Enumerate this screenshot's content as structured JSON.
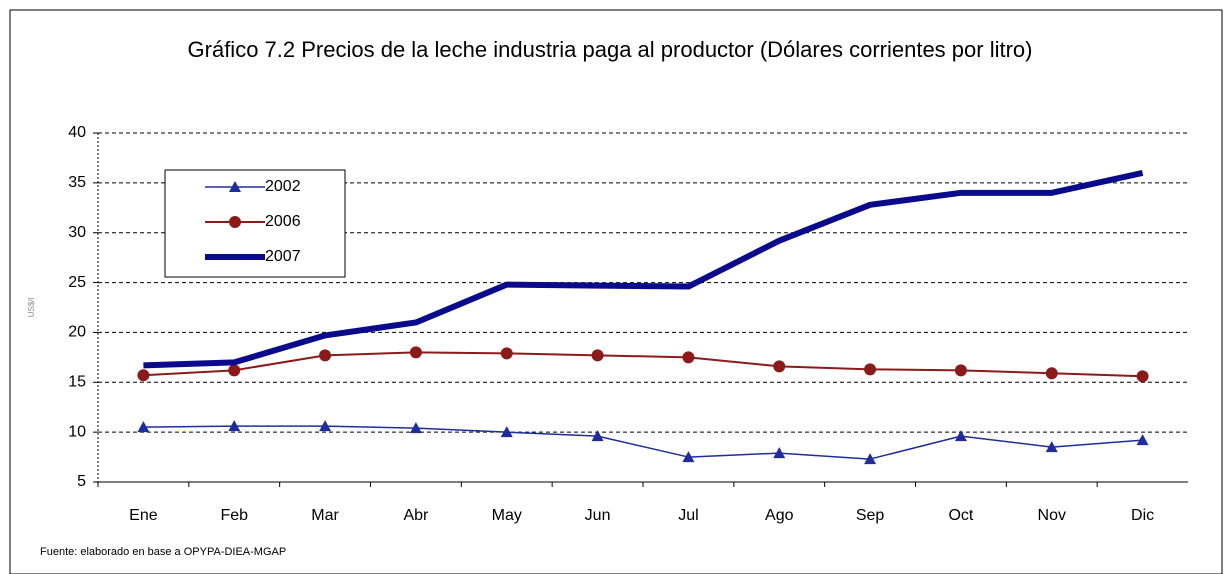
{
  "chart_data": {
    "type": "line",
    "title": "Gráfico 7.2 Precios de la leche industria paga al productor (Dólares corrientes por litro)",
    "y_label": "US$/l",
    "source": "Fuente: elaborado en base a OPYPA-DIEA-MGAP",
    "categories": [
      "Ene",
      "Feb",
      "Mar",
      "Abr",
      "May",
      "Jun",
      "Jul",
      "Ago",
      "Sep",
      "Oct",
      "Nov",
      "Dic"
    ],
    "series": [
      {
        "name": "2002",
        "color": "#1f2c9c",
        "marker": "triangle",
        "width": 1.5,
        "values": [
          10.5,
          10.6,
          10.6,
          10.4,
          10.0,
          9.6,
          7.5,
          7.9,
          7.3,
          9.6,
          8.5,
          9.2
        ]
      },
      {
        "name": "2006",
        "color": "#8b1a1a",
        "marker": "circle",
        "width": 2,
        "values": [
          15.7,
          16.2,
          17.7,
          18.0,
          17.9,
          17.7,
          17.5,
          16.6,
          16.3,
          16.2,
          15.9,
          15.6
        ]
      },
      {
        "name": "2007",
        "color": "#0a0a8c",
        "width": 6,
        "values": [
          16.7,
          17.0,
          19.7,
          21.0,
          24.8,
          24.7,
          24.6,
          29.2,
          32.8,
          34.0,
          34.0,
          36.0
        ]
      }
    ],
    "ylim": [
      5,
      40
    ],
    "yticks": [
      5,
      10,
      15,
      20,
      25,
      30,
      35,
      40
    ],
    "grid": true,
    "legend": "upper left"
  }
}
